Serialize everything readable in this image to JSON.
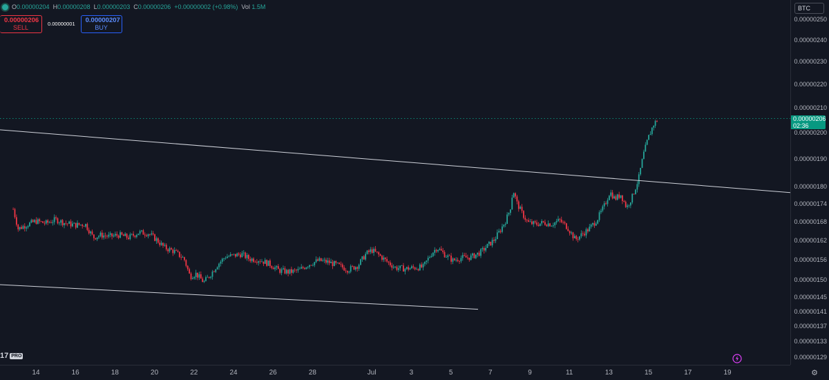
{
  "ohlc": {
    "o_label": "O",
    "o_value": "0.00000204",
    "h_label": "H",
    "h_value": "0.00000208",
    "l_label": "L",
    "l_value": "0.00000203",
    "c_label": "C",
    "c_value": "0.00000206",
    "change": "+0.00000002 (+0.98%)",
    "vol_label": "Vol",
    "vol_value": "1.5M"
  },
  "trade": {
    "sell_price": "0.00000206",
    "sell_label": "SELL",
    "spread": "0.00000001",
    "buy_price": "0.00000207",
    "buy_label": "BUY"
  },
  "currency": "BTC",
  "last_price": {
    "price": "0.00000206",
    "countdown": "02:36"
  },
  "logo": {
    "mark": "17",
    "badge": "PRO"
  },
  "colors": {
    "background": "#131722",
    "up": "#26a69a",
    "down": "#f23645",
    "buy": "#2962ff",
    "trendline": "#d1d4dc",
    "price_tag": "#089981"
  },
  "chart_data": {
    "type": "candlestick",
    "symbol_currency": "BTC",
    "y_ticks": [
      2.5e-06,
      2.4e-06,
      2.3e-06,
      2.2e-06,
      2.1e-06,
      2e-06,
      1.9e-06,
      1.8e-06,
      1.74e-06,
      1.68e-06,
      1.62e-06,
      1.56e-06,
      1.5e-06,
      1.45e-06,
      1.41e-06,
      1.37e-06,
      1.33e-06,
      1.29e-06
    ],
    "y_tick_labels": [
      "0.00000250",
      "0.00000240",
      "0.00000230",
      "0.00000220",
      "0.00000210",
      "0.00000200",
      "0.00000190",
      "0.00000180",
      "0.00000174",
      "0.00000168",
      "0.00000162",
      "0.00000156",
      "0.00000150",
      "0.00000145",
      "0.00000141",
      "0.00000137",
      "0.00000133",
      "0.00000129"
    ],
    "y_scale": "log",
    "x_labels": [
      "14",
      "16",
      "18",
      "20",
      "22",
      "24",
      "26",
      "28",
      "Jul",
      "3",
      "5",
      "7",
      "9",
      "11",
      "13",
      "15",
      "17",
      "19"
    ],
    "x_range_days": [
      12.85,
      19.6
    ],
    "trendlines": [
      {
        "from": {
          "day": 12.85,
          "price": 2.015e-06
        },
        "to": {
          "day": 19.6,
          "price": 1.781e-06
        }
      },
      {
        "from": {
          "day": 12.85,
          "price": 1.488e-06
        },
        "to": {
          "day": 36.7,
          "price": 1.418e-06
        }
      }
    ],
    "price_path": [
      [
        12.85,
        1.725e-06
      ],
      [
        13.1,
        1.66e-06
      ],
      [
        13.5,
        1.672e-06
      ],
      [
        14.0,
        1.685e-06
      ],
      [
        14.5,
        1.678e-06
      ],
      [
        15.0,
        1.69e-06
      ],
      [
        15.5,
        1.678e-06
      ],
      [
        16.0,
        1.672e-06
      ],
      [
        16.5,
        1.675e-06
      ],
      [
        16.9,
        1.632e-06
      ],
      [
        17.3,
        1.64e-06
      ],
      [
        17.7,
        1.635e-06
      ],
      [
        18.2,
        1.64e-06
      ],
      [
        18.7,
        1.632e-06
      ],
      [
        19.2,
        1.648e-06
      ],
      [
        19.7,
        1.645e-06
      ],
      [
        20.1,
        1.625e-06
      ],
      [
        20.5,
        1.6e-06
      ],
      [
        21.0,
        1.588e-06
      ],
      [
        21.5,
        1.565e-06
      ],
      [
        21.8,
        1.512e-06
      ],
      [
        22.1,
        1.52e-06
      ],
      [
        22.5,
        1.495e-06
      ],
      [
        22.8,
        1.515e-06
      ],
      [
        23.2,
        1.548e-06
      ],
      [
        23.6,
        1.572e-06
      ],
      [
        24.0,
        1.575e-06
      ],
      [
        24.4,
        1.58e-06
      ],
      [
        24.8,
        1.565e-06
      ],
      [
        25.3,
        1.562e-06
      ],
      [
        25.8,
        1.55e-06
      ],
      [
        26.3,
        1.53e-06
      ],
      [
        26.8,
        1.525e-06
      ],
      [
        27.3,
        1.53e-06
      ],
      [
        27.8,
        1.548e-06
      ],
      [
        28.3,
        1.56e-06
      ],
      [
        28.8,
        1.555e-06
      ],
      [
        29.3,
        1.545e-06
      ],
      [
        29.8,
        1.532e-06
      ],
      [
        30.3,
        1.545e-06
      ],
      [
        30.7,
        1.58e-06
      ],
      [
        31.0,
        1.592e-06
      ],
      [
        31.4,
        1.575e-06
      ],
      [
        31.8,
        1.555e-06
      ],
      [
        32.2,
        1.538e-06
      ],
      [
        32.7,
        1.535e-06
      ],
      [
        33.1,
        1.538e-06
      ],
      [
        33.6,
        1.54e-06
      ],
      [
        34.0,
        1.58e-06
      ],
      [
        34.3,
        1.6e-06
      ],
      [
        34.7,
        1.578e-06
      ],
      [
        35.1,
        1.56e-06
      ],
      [
        35.5,
        1.568e-06
      ],
      [
        36.0,
        1.57e-06
      ],
      [
        36.5,
        1.585e-06
      ],
      [
        36.9,
        1.608e-06
      ],
      [
        37.2,
        1.625e-06
      ],
      [
        37.5,
        1.655e-06
      ],
      [
        37.8,
        1.69e-06
      ],
      [
        38.0,
        1.725e-06
      ],
      [
        38.15,
        1.792e-06
      ],
      [
        38.35,
        1.745e-06
      ],
      [
        38.6,
        1.712e-06
      ],
      [
        38.9,
        1.68e-06
      ],
      [
        39.3,
        1.675e-06
      ],
      [
        39.7,
        1.68e-06
      ],
      [
        40.1,
        1.675e-06
      ],
      [
        40.5,
        1.688e-06
      ],
      [
        40.9,
        1.665e-06
      ],
      [
        41.3,
        1.625e-06
      ],
      [
        41.6,
        1.64e-06
      ],
      [
        42.0,
        1.66e-06
      ],
      [
        42.4,
        1.69e-06
      ],
      [
        42.8,
        1.74e-06
      ],
      [
        43.05,
        1.785e-06
      ],
      [
        43.3,
        1.76e-06
      ],
      [
        43.6,
        1.775e-06
      ],
      [
        43.9,
        1.73e-06
      ],
      [
        44.2,
        1.77e-06
      ],
      [
        44.5,
        1.83e-06
      ],
      [
        44.75,
        1.92e-06
      ],
      [
        45.0,
        1.985e-06
      ],
      [
        45.25,
        2.035e-06
      ],
      [
        45.5,
        2.06e-06
      ]
    ]
  }
}
